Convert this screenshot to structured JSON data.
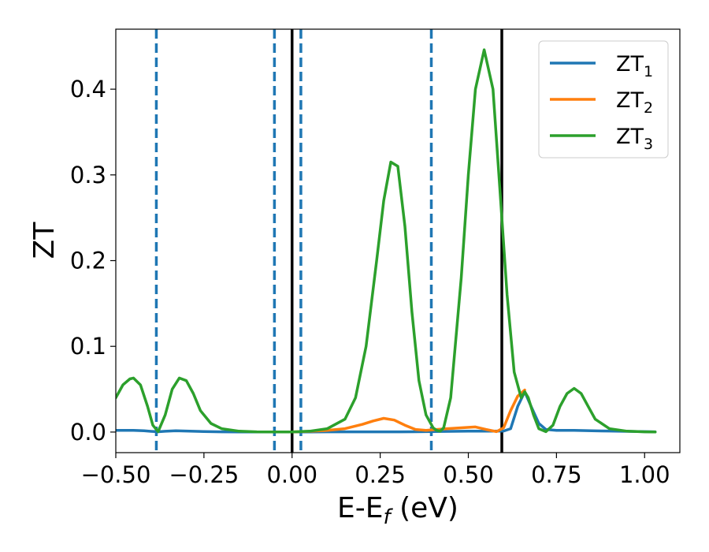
{
  "chart_data": {
    "type": "line",
    "xlabel": {
      "main": "E-E",
      "sub": "f",
      "suffix": " (eV)"
    },
    "ylabel": "ZT",
    "xlim": [
      -0.5,
      1.1
    ],
    "ylim": [
      -0.024,
      0.47
    ],
    "x_ticks": [
      {
        "value": -0.5,
        "label": "−0.50"
      },
      {
        "value": -0.25,
        "label": "−0.25"
      },
      {
        "value": 0.0,
        "label": "0.00"
      },
      {
        "value": 0.25,
        "label": "0.25"
      },
      {
        "value": 0.5,
        "label": "0.50"
      },
      {
        "value": 0.75,
        "label": "0.75"
      },
      {
        "value": 1.0,
        "label": "1.00"
      }
    ],
    "y_ticks": [
      {
        "value": 0.0,
        "label": "0.0"
      },
      {
        "value": 0.1,
        "label": "0.1"
      },
      {
        "value": 0.2,
        "label": "0.2"
      },
      {
        "value": 0.3,
        "label": "0.3"
      },
      {
        "value": 0.4,
        "label": "0.4"
      }
    ],
    "grid": false,
    "legend_position": "top-right",
    "series": [
      {
        "name": "ZT",
        "sub": "1",
        "color": "#1f77b4",
        "x": [
          -0.5,
          -0.45,
          -0.42,
          -0.4,
          -0.38,
          -0.36,
          -0.33,
          -0.3,
          -0.25,
          -0.2,
          -0.15,
          -0.1,
          -0.05,
          0.0,
          0.05,
          0.1,
          0.15,
          0.2,
          0.25,
          0.3,
          0.35,
          0.4,
          0.45,
          0.5,
          0.53,
          0.56,
          0.6,
          0.62,
          0.64,
          0.66,
          0.68,
          0.7,
          0.72,
          0.75,
          0.8,
          0.85,
          0.9,
          0.95,
          1.0,
          1.03
        ],
        "y": [
          0.002,
          0.002,
          0.0015,
          0.0008,
          0.0004,
          0.0009,
          0.0016,
          0.0012,
          0.0006,
          0.0003,
          0.0002,
          0.0001,
          0.0001,
          0.0001,
          0.0002,
          0.0003,
          0.0003,
          0.0003,
          0.0003,
          0.0003,
          0.0004,
          0.0006,
          0.0008,
          0.001,
          0.001,
          0.001,
          0.0012,
          0.004,
          0.03,
          0.047,
          0.028,
          0.01,
          0.003,
          0.002,
          0.002,
          0.0015,
          0.0012,
          0.0008,
          0.0005,
          0.0003
        ]
      },
      {
        "name": "ZT",
        "sub": "2",
        "color": "#ff7f0e",
        "x": [
          0.0,
          0.05,
          0.1,
          0.15,
          0.2,
          0.23,
          0.26,
          0.29,
          0.32,
          0.35,
          0.38,
          0.41,
          0.44,
          0.48,
          0.52,
          0.55,
          0.58,
          0.6,
          0.62,
          0.64,
          0.66
        ],
        "y": [
          0.0002,
          0.0008,
          0.002,
          0.004,
          0.009,
          0.013,
          0.016,
          0.014,
          0.008,
          0.003,
          0.002,
          0.003,
          0.004,
          0.005,
          0.006,
          0.003,
          0.0005,
          0.005,
          0.025,
          0.042,
          0.049
        ]
      },
      {
        "name": "ZT",
        "sub": "3",
        "color": "#2ca02c",
        "x": [
          -0.5,
          -0.48,
          -0.46,
          -0.45,
          -0.43,
          -0.41,
          -0.395,
          -0.38,
          -0.36,
          -0.34,
          -0.32,
          -0.3,
          -0.28,
          -0.26,
          -0.23,
          -0.2,
          -0.15,
          -0.1,
          -0.05,
          0.0,
          0.05,
          0.1,
          0.15,
          0.18,
          0.21,
          0.24,
          0.26,
          0.28,
          0.3,
          0.32,
          0.34,
          0.36,
          0.38,
          0.4,
          0.41,
          0.42,
          0.43,
          0.45,
          0.48,
          0.5,
          0.52,
          0.545,
          0.57,
          0.59,
          0.61,
          0.63,
          0.65,
          0.66,
          0.67,
          0.685,
          0.7,
          0.72,
          0.74,
          0.76,
          0.78,
          0.8,
          0.82,
          0.84,
          0.86,
          0.9,
          0.95,
          1.0,
          1.03
        ],
        "y": [
          0.04,
          0.055,
          0.062,
          0.063,
          0.055,
          0.03,
          0.008,
          0.0005,
          0.02,
          0.05,
          0.063,
          0.06,
          0.045,
          0.025,
          0.01,
          0.004,
          0.001,
          0.0003,
          0.0002,
          0.0002,
          0.001,
          0.004,
          0.015,
          0.04,
          0.1,
          0.2,
          0.27,
          0.315,
          0.31,
          0.24,
          0.14,
          0.06,
          0.02,
          0.005,
          0.002,
          0.001,
          0.005,
          0.04,
          0.18,
          0.3,
          0.4,
          0.446,
          0.4,
          0.28,
          0.16,
          0.07,
          0.04,
          0.047,
          0.04,
          0.02,
          0.004,
          0.0005,
          0.008,
          0.03,
          0.045,
          0.051,
          0.045,
          0.03,
          0.015,
          0.004,
          0.001,
          0.0003,
          0.0001
        ]
      }
    ],
    "vlines": [
      {
        "x": -0.385,
        "style": "dashed",
        "color": "#1f77b4"
      },
      {
        "x": -0.05,
        "style": "dashed",
        "color": "#1f77b4"
      },
      {
        "x": 0.025,
        "style": "dashed",
        "color": "#1f77b4"
      },
      {
        "x": 0.395,
        "style": "dashed",
        "color": "#1f77b4"
      },
      {
        "x": 0.0,
        "style": "solid",
        "color": "#000000"
      },
      {
        "x": 0.595,
        "style": "solid",
        "color": "#000000"
      }
    ]
  }
}
